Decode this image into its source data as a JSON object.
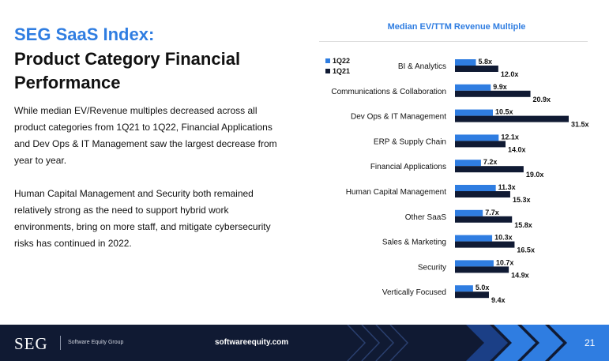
{
  "slide": {
    "title_accent": "SEG SaaS Index:",
    "title_main": "Product Category Financial Performance",
    "paragraph_1": "While median EV/Revenue multiples decreased across all product categories from 1Q21 to 1Q22, Financial Applications and Dev Ops & IT Management saw the largest decrease from year to year.",
    "paragraph_2": "Human Capital Management and Security both remained relatively strong as the need to support hybrid work environments, bring on more staff, and mitigate cybersecurity risks has continued in 2022."
  },
  "footer": {
    "logo": "SEG",
    "company": "Software Equity Group",
    "url": "softwareequity.com",
    "page_number": "21"
  },
  "colors": {
    "accent": "#2f7de1",
    "series_1q22": "#2f7de1",
    "series_1q21": "#101a33",
    "footer_bg": "#101a33"
  },
  "chart_data": {
    "type": "bar",
    "orientation": "horizontal",
    "title": "Median EV/TTM Revenue Multiple",
    "categories": [
      "BI & Analytics",
      "Communications & Collaboration",
      "Dev Ops & IT Management",
      "ERP & Supply Chain",
      "Financial Applications",
      "Human Capital Management",
      "Other SaaS",
      "Sales & Marketing",
      "Security",
      "Vertically Focused"
    ],
    "series": [
      {
        "name": "1Q22",
        "values": [
          5.8,
          9.9,
          10.5,
          12.1,
          7.2,
          11.3,
          7.7,
          10.3,
          10.7,
          5.0
        ],
        "labels": [
          "5.8x",
          "9.9x",
          "10.5x",
          "12.1x",
          "7.2x",
          "11.3x",
          "7.7x",
          "10.3x",
          "10.7x",
          "5.0x"
        ]
      },
      {
        "name": "1Q21",
        "values": [
          12.0,
          20.9,
          31.5,
          14.0,
          19.0,
          15.3,
          15.8,
          16.5,
          14.9,
          9.4
        ],
        "labels": [
          "12.0x",
          "20.9x",
          "31.5x",
          "14.0x",
          "19.0x",
          "15.3x",
          "15.8x",
          "16.5x",
          "14.9x",
          "9.4x"
        ]
      }
    ],
    "xlim": [
      0,
      31.5
    ],
    "legend_position": "top-left",
    "grid": false
  }
}
